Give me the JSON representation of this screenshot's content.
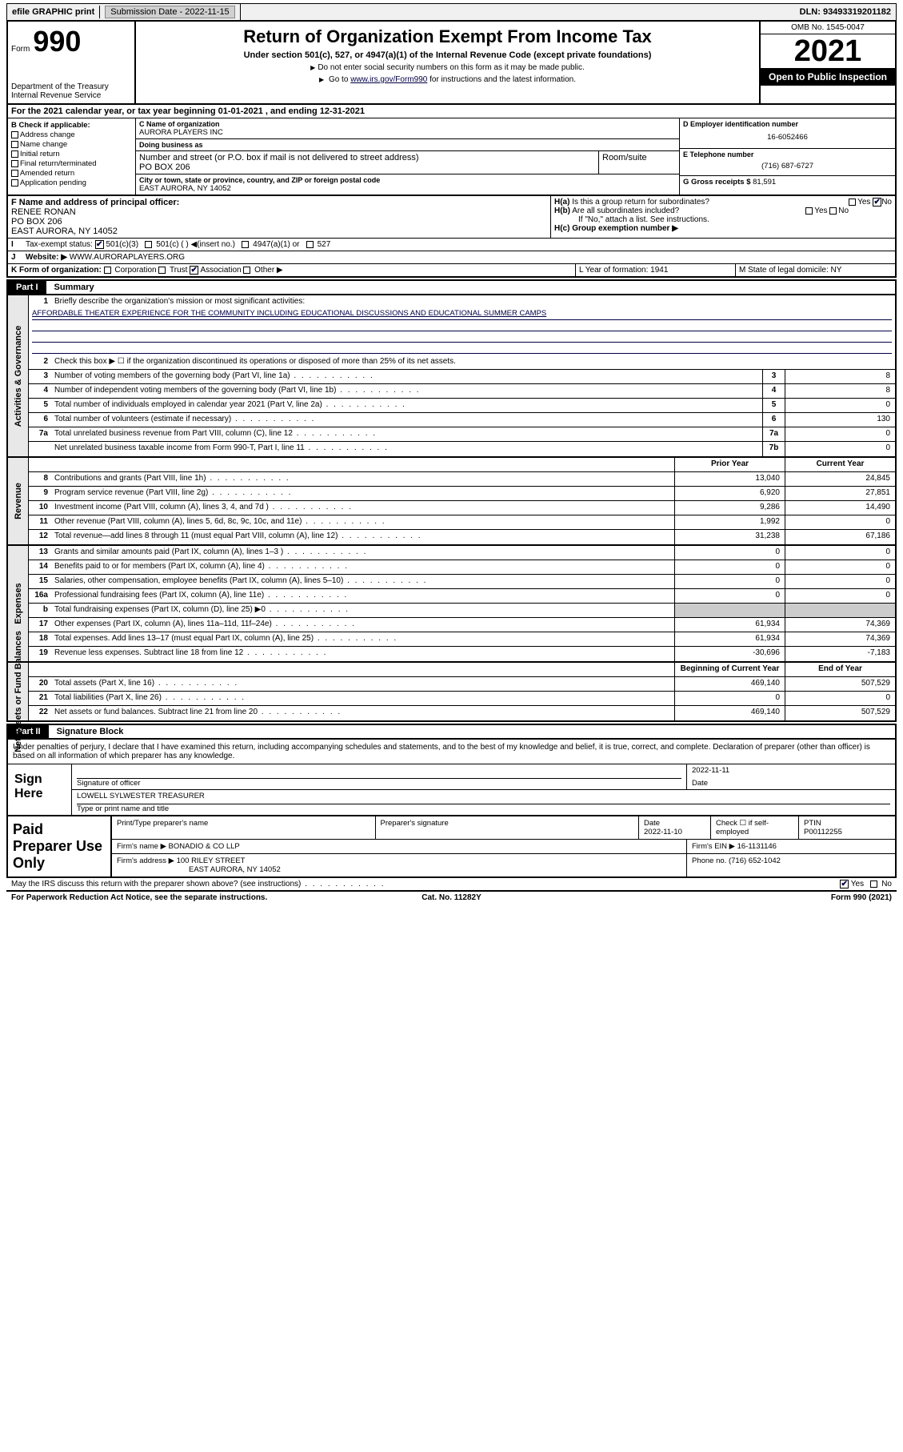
{
  "top": {
    "efile": "efile GRAPHIC print",
    "sub_label": "Submission Date - 2022-11-15",
    "dln": "DLN: 93493319201182"
  },
  "header": {
    "form_word": "Form",
    "form_num": "990",
    "dept": "Department of the Treasury",
    "irs": "Internal Revenue Service",
    "title": "Return of Organization Exempt From Income Tax",
    "subtitle": "Under section 501(c), 527, or 4947(a)(1) of the Internal Revenue Code (except private foundations)",
    "note1": "Do not enter social security numbers on this form as it may be made public.",
    "note2_pre": "Go to ",
    "note2_link": "www.irs.gov/Form990",
    "note2_post": " for instructions and the latest information.",
    "omb": "OMB No. 1545-0047",
    "year": "2021",
    "open": "Open to Public Inspection"
  },
  "row_a": "For the 2021 calendar year, or tax year beginning 01-01-2021   , and ending 12-31-2021",
  "col_b": {
    "title": "B Check if applicable:",
    "items": [
      "Address change",
      "Name change",
      "Initial return",
      "Final return/terminated",
      "Amended return",
      "Application pending"
    ]
  },
  "org": {
    "c_label": "C Name of organization",
    "name": "AURORA PLAYERS INC",
    "dba_label": "Doing business as",
    "dba": "",
    "addr_label": "Number and street (or P.O. box if mail is not delivered to street address)",
    "room_label": "Room/suite",
    "addr": "PO BOX 206",
    "city_label": "City or town, state or province, country, and ZIP or foreign postal code",
    "city": "EAST AURORA, NY  14052"
  },
  "col_d": {
    "d_label": "D Employer identification number",
    "ein": "16-6052466",
    "e_label": "E Telephone number",
    "phone": "(716) 687-6727",
    "g_label": "G Gross receipts $",
    "gross": "81,591"
  },
  "row_f": {
    "f_label": "F Name and address of principal officer:",
    "name": "RENEE RONAN",
    "addr1": "PO BOX 206",
    "addr2": "EAST AURORA, NY  14052"
  },
  "h": {
    "ha_label": "H(a)  Is this a group return for subordinates?",
    "hb_label": "H(b)  Are all subordinates included?",
    "hb_note": "If \"No,\" attach a list. See instructions.",
    "hc_label": "H(c)  Group exemption number ▶",
    "yes": "Yes",
    "no": "No"
  },
  "row_i": {
    "label": "Tax-exempt status:",
    "opts": [
      "501(c)(3)",
      "501(c) (  ) ◀(insert no.)",
      "4947(a)(1) or",
      "527"
    ]
  },
  "row_j": {
    "label": "Website: ▶",
    "val": "WWW.AURORAPLAYERS.ORG"
  },
  "row_k": {
    "label": "K Form of organization:",
    "opts": [
      "Corporation",
      "Trust",
      "Association",
      "Other ▶"
    ],
    "l": "L Year of formation: 1941",
    "m": "M State of legal domicile: NY"
  },
  "parts": {
    "p1": "Part I",
    "p1t": "Summary",
    "p2": "Part II",
    "p2t": "Signature Block"
  },
  "summary": {
    "side1": "Activities & Governance",
    "side2": "Revenue",
    "side3": "Expenses",
    "side4": "Net Assets or Fund Balances",
    "line1_label": "Briefly describe the organization's mission or most significant activities:",
    "mission": "AFFORDABLE THEATER EXPERIENCE FOR THE COMMUNITY INCLUDING EDUCATIONAL DISCUSSIONS AND EDUCATIONAL SUMMER CAMPS",
    "line2": "Check this box ▶ ☐  if the organization discontinued its operations or disposed of more than 25% of its net assets.",
    "lines_gov": [
      {
        "n": "3",
        "d": "Number of voting members of the governing body (Part VI, line 1a)",
        "box": "3",
        "v": "8"
      },
      {
        "n": "4",
        "d": "Number of independent voting members of the governing body (Part VI, line 1b)",
        "box": "4",
        "v": "8"
      },
      {
        "n": "5",
        "d": "Total number of individuals employed in calendar year 2021 (Part V, line 2a)",
        "box": "5",
        "v": "0"
      },
      {
        "n": "6",
        "d": "Total number of volunteers (estimate if necessary)",
        "box": "6",
        "v": "130"
      },
      {
        "n": "7a",
        "d": "Total unrelated business revenue from Part VIII, column (C), line 12",
        "box": "7a",
        "v": "0"
      },
      {
        "n": "",
        "d": "Net unrelated business taxable income from Form 990-T, Part I, line 11",
        "box": "7b",
        "v": "0"
      }
    ],
    "col_py": "Prior Year",
    "col_cy": "Current Year",
    "lines_rev": [
      {
        "n": "8",
        "d": "Contributions and grants (Part VIII, line 1h)",
        "py": "13,040",
        "cy": "24,845"
      },
      {
        "n": "9",
        "d": "Program service revenue (Part VIII, line 2g)",
        "py": "6,920",
        "cy": "27,851"
      },
      {
        "n": "10",
        "d": "Investment income (Part VIII, column (A), lines 3, 4, and 7d )",
        "py": "9,286",
        "cy": "14,490"
      },
      {
        "n": "11",
        "d": "Other revenue (Part VIII, column (A), lines 5, 6d, 8c, 9c, 10c, and 11e)",
        "py": "1,992",
        "cy": "0"
      },
      {
        "n": "12",
        "d": "Total revenue—add lines 8 through 11 (must equal Part VIII, column (A), line 12)",
        "py": "31,238",
        "cy": "67,186"
      }
    ],
    "lines_exp": [
      {
        "n": "13",
        "d": "Grants and similar amounts paid (Part IX, column (A), lines 1–3 )",
        "py": "0",
        "cy": "0"
      },
      {
        "n": "14",
        "d": "Benefits paid to or for members (Part IX, column (A), line 4)",
        "py": "0",
        "cy": "0"
      },
      {
        "n": "15",
        "d": "Salaries, other compensation, employee benefits (Part IX, column (A), lines 5–10)",
        "py": "0",
        "cy": "0"
      },
      {
        "n": "16a",
        "d": "Professional fundraising fees (Part IX, column (A), line 11e)",
        "py": "0",
        "cy": "0"
      },
      {
        "n": "b",
        "d": "Total fundraising expenses (Part IX, column (D), line 25) ▶0",
        "py": "",
        "cy": "",
        "gray": true
      },
      {
        "n": "17",
        "d": "Other expenses (Part IX, column (A), lines 11a–11d, 11f–24e)",
        "py": "61,934",
        "cy": "74,369"
      },
      {
        "n": "18",
        "d": "Total expenses. Add lines 13–17 (must equal Part IX, column (A), line 25)",
        "py": "61,934",
        "cy": "74,369"
      },
      {
        "n": "19",
        "d": "Revenue less expenses. Subtract line 18 from line 12",
        "py": "-30,696",
        "cy": "-7,183"
      }
    ],
    "col_boy": "Beginning of Current Year",
    "col_eoy": "End of Year",
    "lines_net": [
      {
        "n": "20",
        "d": "Total assets (Part X, line 16)",
        "py": "469,140",
        "cy": "507,529"
      },
      {
        "n": "21",
        "d": "Total liabilities (Part X, line 26)",
        "py": "0",
        "cy": "0"
      },
      {
        "n": "22",
        "d": "Net assets or fund balances. Subtract line 21 from line 20",
        "py": "469,140",
        "cy": "507,529"
      }
    ]
  },
  "sig": {
    "text": "Under penalties of perjury, I declare that I have examined this return, including accompanying schedules and statements, and to the best of my knowledge and belief, it is true, correct, and complete. Declaration of preparer (other than officer) is based on all information of which preparer has any knowledge.",
    "here": "Sign Here",
    "sig_label": "Signature of officer",
    "date_label": "Date",
    "date": "2022-11-11",
    "name": "LOWELL SYLWESTER  TREASURER",
    "name_label": "Type or print name and title"
  },
  "prep": {
    "title": "Paid Preparer Use Only",
    "h1": "Print/Type preparer's name",
    "h2": "Preparer's signature",
    "h3": "Date",
    "date": "2022-11-10",
    "h4": "Check ☐ if self-employed",
    "h5": "PTIN",
    "ptin": "P00112255",
    "firm_label": "Firm's name    ▶",
    "firm": "BONADIO & CO LLP",
    "ein_label": "Firm's EIN ▶",
    "ein": "16-1131146",
    "addr_label": "Firm's address ▶",
    "addr1": "100 RILEY STREET",
    "addr2": "EAST AURORA, NY  14052",
    "phone_label": "Phone no.",
    "phone": "(716) 652-1042"
  },
  "footer": {
    "q": "May the IRS discuss this return with the preparer shown above? (see instructions)",
    "yes": "Yes",
    "no": "No",
    "paperwork": "For Paperwork Reduction Act Notice, see the separate instructions.",
    "cat": "Cat. No. 11282Y",
    "form": "Form 990 (2021)"
  }
}
